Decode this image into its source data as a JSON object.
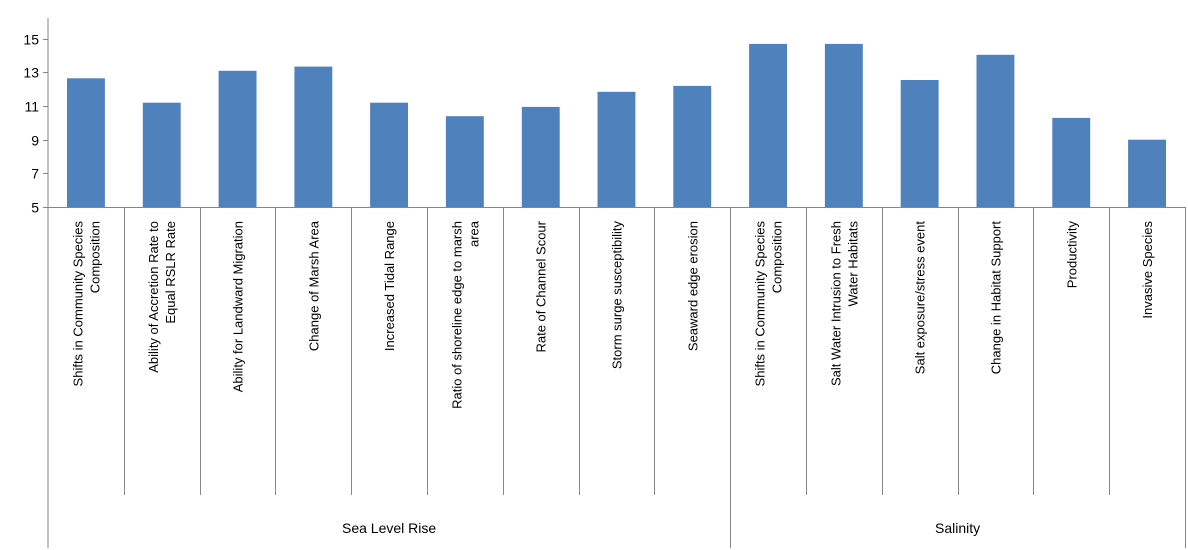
{
  "chart_data": {
    "type": "bar",
    "categories": [
      "Shifts in Community Species Composition",
      "Ability of Accretion Rate to Equal RSLR Rate",
      "Ability for Landward Migration",
      "Change of Marsh Area",
      "Increased Tidal Range",
      "Ratio of shoreline edge to marsh area",
      "Rate of Channel Scour",
      "Storm surge susceptibility",
      "Seaward edge erosion",
      "Shifts in Community Species Composition",
      "Salt Water Intrusion to Fresh Water Habitats",
      "Salt exposure/stress event",
      "Change in Habitat Support",
      "Productivity",
      "Invasive Species"
    ],
    "category_lines": [
      [
        "Shifts in Community Species",
        "Composition"
      ],
      [
        "Ability of Accretion Rate to",
        "Equal RSLR Rate"
      ],
      [
        "Ability for Landward Migration"
      ],
      [
        "Change of Marsh Area"
      ],
      [
        "Increased Tidal Range"
      ],
      [
        "Ratio of shoreline edge to marsh",
        "area"
      ],
      [
        "Rate of Channel Scour"
      ],
      [
        "Storm surge susceptibility"
      ],
      [
        "Seaward edge erosion"
      ],
      [
        "Shifts in Community Species",
        "Composition"
      ],
      [
        "Salt Water Intrusion to Fresh",
        "Water Habitats"
      ],
      [
        "Salt exposure/stress event"
      ],
      [
        "Change in Habitat Support"
      ],
      [
        "Productivity"
      ],
      [
        "Invasive Species"
      ]
    ],
    "values": [
      12.65,
      11.2,
      13.1,
      13.35,
      11.2,
      10.4,
      10.95,
      11.85,
      12.2,
      14.7,
      14.7,
      12.55,
      14.05,
      10.3,
      9.0
    ],
    "groups": [
      {
        "name": "Sea Level Rise",
        "count": 9
      },
      {
        "name": "Salinity",
        "count": 6
      }
    ],
    "yticks": [
      5,
      7,
      9,
      11,
      13,
      15
    ],
    "ylim": [
      5,
      16
    ],
    "title": "",
    "xlabel": "",
    "ylabel": "",
    "bar_color": "#4f81bd",
    "grid": false,
    "legend": "none"
  }
}
